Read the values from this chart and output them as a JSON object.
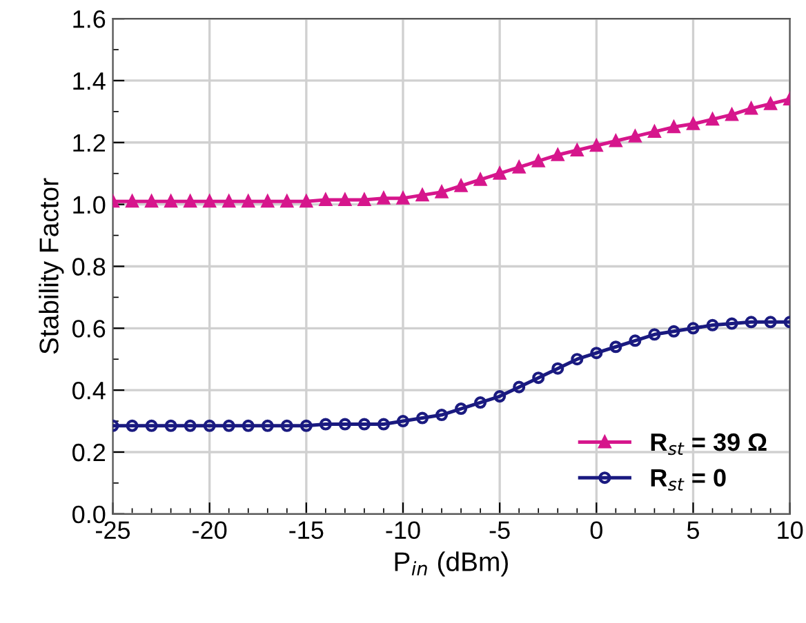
{
  "chart_data": {
    "type": "line",
    "xlabel": "P$_{in}$ (dBm)",
    "ylabel": "Stability Factor",
    "x": [
      -25,
      -24,
      -23,
      -22,
      -21,
      -20,
      -19,
      -18,
      -17,
      -16,
      -15,
      -14,
      -13,
      -12,
      -11,
      -10,
      -9,
      -8,
      -7,
      -6,
      -5,
      -4,
      -3,
      -2,
      -1,
      0,
      1,
      2,
      3,
      4,
      5,
      6,
      7,
      8,
      9,
      10
    ],
    "series": [
      {
        "name": "R$_{st}$ = 39 Ω",
        "color": "#d6168c",
        "marker": "triangle",
        "values": [
          1.01,
          1.01,
          1.01,
          1.01,
          1.01,
          1.01,
          1.01,
          1.01,
          1.01,
          1.01,
          1.01,
          1.015,
          1.015,
          1.015,
          1.02,
          1.02,
          1.03,
          1.04,
          1.06,
          1.08,
          1.1,
          1.12,
          1.14,
          1.16,
          1.175,
          1.19,
          1.205,
          1.22,
          1.235,
          1.25,
          1.26,
          1.275,
          1.29,
          1.31,
          1.325,
          1.34
        ]
      },
      {
        "name": "R$_{st}$ = 0",
        "color": "#1a1a80",
        "marker": "circle",
        "values": [
          0.285,
          0.285,
          0.285,
          0.285,
          0.285,
          0.285,
          0.285,
          0.285,
          0.285,
          0.285,
          0.285,
          0.29,
          0.29,
          0.29,
          0.29,
          0.3,
          0.31,
          0.32,
          0.34,
          0.36,
          0.38,
          0.41,
          0.44,
          0.47,
          0.5,
          0.52,
          0.54,
          0.56,
          0.58,
          0.59,
          0.6,
          0.61,
          0.615,
          0.62,
          0.62,
          0.62
        ]
      }
    ],
    "xlim": [
      -25,
      10
    ],
    "xticks": [
      -25,
      -20,
      -15,
      -10,
      -5,
      0,
      5,
      10
    ],
    "ylim": [
      0,
      1.6
    ],
    "yticks": [
      {
        "value": 0,
        "label": "0.0"
      },
      {
        "value": 0.2,
        "label": "0.2"
      },
      {
        "value": 0.4,
        "label": "0.4"
      },
      {
        "value": 0.6,
        "label": "0.6"
      },
      {
        "value": 0.8,
        "label": "0.8"
      },
      {
        "value": 1.0,
        "label": "1.0"
      },
      {
        "value": 1.2,
        "label": "1.2"
      },
      {
        "value": 1.4,
        "label": "1.4"
      },
      {
        "value": 1.6,
        "label": "1.6"
      }
    ],
    "grid": true,
    "legend": "bottom right"
  }
}
